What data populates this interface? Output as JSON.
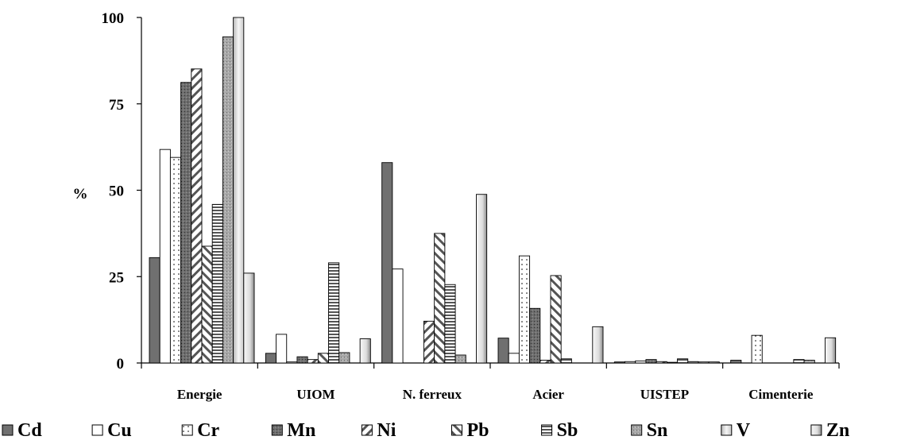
{
  "chart_data": {
    "type": "bar",
    "ylabel": "%",
    "ylim": [
      0,
      100
    ],
    "yticks": [
      0,
      25,
      50,
      75,
      100
    ],
    "categories": [
      "Energie",
      "UIOM",
      "N. ferreux",
      "Acier",
      "UISTEP",
      "Cimenterie"
    ],
    "series": [
      {
        "name": "Cd",
        "values": [
          30.5,
          2.8,
          58,
          7.2,
          0.3,
          0.8
        ]
      },
      {
        "name": "Cu",
        "values": [
          61.8,
          8.3,
          27.2,
          2.8,
          0.4,
          0
        ]
      },
      {
        "name": "Cr",
        "values": [
          59.5,
          0.3,
          0,
          31,
          0.6,
          8
        ]
      },
      {
        "name": "Mn",
        "values": [
          81.2,
          1.8,
          0,
          15.8,
          1,
          0
        ]
      },
      {
        "name": "Ni",
        "values": [
          85.1,
          1,
          12.1,
          0.8,
          0.4,
          0
        ]
      },
      {
        "name": "Pb",
        "values": [
          33.8,
          2.8,
          37.5,
          25.3,
          0.2,
          0
        ]
      },
      {
        "name": "Sb",
        "values": [
          45.9,
          29,
          22.7,
          1.2,
          1.2,
          1
        ]
      },
      {
        "name": "Sn",
        "values": [
          94.4,
          3,
          2.3,
          0,
          0.4,
          0.8
        ]
      },
      {
        "name": "V",
        "values": [
          100,
          0,
          0,
          0,
          0.3,
          0
        ]
      },
      {
        "name": "Zn",
        "values": [
          26,
          7,
          48.8,
          10.5,
          0.3,
          7.3
        ]
      }
    ],
    "legend_position": "bottom",
    "colors": {
      "Cd": "#707070",
      "Cu": "#ffffff",
      "Cr": "#ffffff",
      "Mn": "#6e6e6e",
      "Ni": "#ffffff",
      "Pb": "#ffffff",
      "Sb": "#ffffff",
      "Sn": "#a8a8a8",
      "V": "#e2e2e2",
      "Zn": "#e8e8e8"
    },
    "patterns": {
      "Cd": "solid-dark",
      "Cu": "solid-white",
      "Cr": "dotted",
      "Mn": "speckled-dark",
      "Ni": "wide-diagonal-up",
      "Pb": "wide-diagonal-down",
      "Sb": "horizontal-lines",
      "Sn": "speckled-gradient",
      "V": "light-gradient",
      "Zn": "light-gradient-edge"
    }
  }
}
